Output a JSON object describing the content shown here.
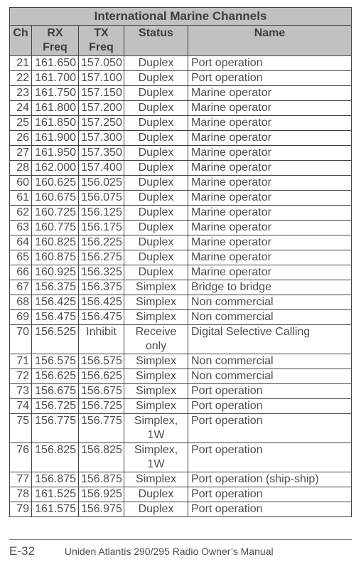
{
  "title": "International Marine Channels",
  "columns": [
    "Ch",
    "RX Freq",
    "TX Freq",
    "Status",
    "Name"
  ],
  "rows": [
    [
      "21",
      "161.650",
      "157.050",
      "Duplex",
      "Port operation"
    ],
    [
      "22",
      "161.700",
      "157.100",
      "Duplex",
      "Port operation"
    ],
    [
      "23",
      "161.750",
      "157.150",
      "Duplex",
      "Marine operator"
    ],
    [
      "24",
      "161.800",
      "157.200",
      "Duplex",
      "Marine operator"
    ],
    [
      "25",
      "161.850",
      "157.250",
      "Duplex",
      "Marine operator"
    ],
    [
      "26",
      "161.900",
      "157.300",
      "Duplex",
      "Marine operator"
    ],
    [
      "27",
      "161.950",
      "157.350",
      "Duplex",
      "Marine operator"
    ],
    [
      "28",
      "162.000",
      "157.400",
      "Duplex",
      "Marine operator"
    ],
    [
      "60",
      "160.625",
      "156.025",
      "Duplex",
      "Marine operator"
    ],
    [
      "61",
      "160.675",
      "156.075",
      "Duplex",
      "Marine operator"
    ],
    [
      "62",
      "160.725",
      "156.125",
      "Duplex",
      "Marine operator"
    ],
    [
      "63",
      "160.775",
      "156.175",
      "Duplex",
      "Marine operator"
    ],
    [
      "64",
      "160.825",
      "156.225",
      "Duplex",
      "Marine operator"
    ],
    [
      "65",
      "160.875",
      "156.275",
      "Duplex",
      "Marine operator"
    ],
    [
      "66",
      "160.925",
      "156.325",
      "Duplex",
      "Marine operator"
    ],
    [
      "67",
      "156.375",
      "156.375",
      "Simplex",
      "Bridge to bridge"
    ],
    [
      "68",
      "156.425",
      "156.425",
      "Simplex",
      "Non commercial"
    ],
    [
      "69",
      "156.475",
      "156.475",
      "Simplex",
      "Non commercial"
    ],
    [
      "70",
      "156.525",
      "Inhibit",
      "Receive only",
      "Digital Selective Calling"
    ],
    [
      "71",
      "156.575",
      "156.575",
      "Simplex",
      "Non commercial"
    ],
    [
      "72",
      "156.625",
      "156.625",
      "Simplex",
      "Non commercial"
    ],
    [
      "73",
      "156.675",
      "156.675",
      "Simplex",
      "Port operation"
    ],
    [
      "74",
      "156.725",
      "156.725",
      "Simplex",
      "Port operation"
    ],
    [
      "75",
      "156.775",
      "156.775",
      "Simplex, 1W",
      "Port operation"
    ],
    [
      "76",
      "156.825",
      "156.825",
      "Simplex, 1W",
      "Port operation"
    ],
    [
      "77",
      "156.875",
      "156.875",
      "Simplex",
      "Port operation (ship-ship)"
    ],
    [
      "78",
      "161.525",
      "156.925",
      "Duplex",
      "Port operation"
    ],
    [
      "79",
      "161.575",
      "156.975",
      "Duplex",
      "Port operation"
    ]
  ],
  "footer": {
    "page": "E-32",
    "manual": "Uniden Atlantis 290/295 Radio Owner’s Manual"
  }
}
